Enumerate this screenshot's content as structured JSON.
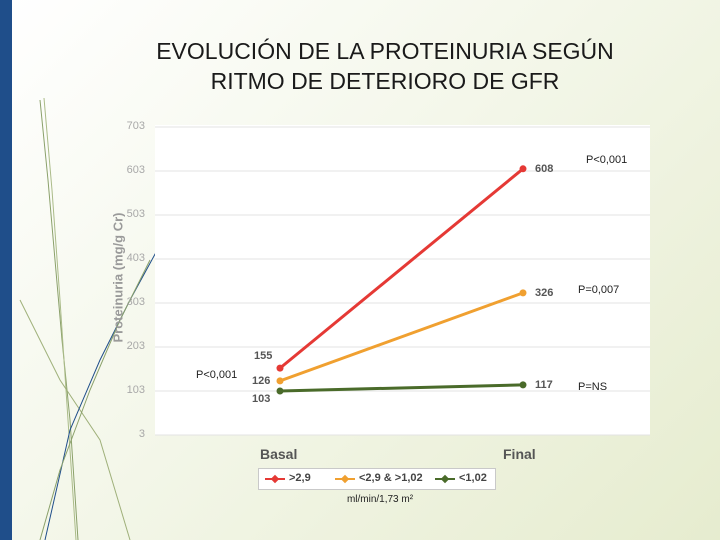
{
  "slide": {
    "title_line1": "EVOLUCIÓN DE LA PROTEINURIA SEGÚN",
    "title_line2": "RITMO DE DETERIORO DE GFR",
    "unit_note": "ml/min/1,73 m²"
  },
  "annotations": {
    "top_right": "P<0,001",
    "mid_right": "P=0,007",
    "bottom_right": "P=NS",
    "left": "P<0,001"
  },
  "chart_data": {
    "type": "line",
    "title": "",
    "xlabel": "",
    "ylabel": "Proteinuria (mg/g Cr)",
    "categories": [
      "Basal",
      "Final"
    ],
    "ylim": [
      3,
      703
    ],
    "yticks": [
      "703",
      "603",
      "503",
      "403",
      "303",
      "203",
      "103",
      "3"
    ],
    "ytick_values": [
      703,
      603,
      503,
      403,
      303,
      203,
      103,
      3
    ],
    "grid": true,
    "legend_position": "bottom",
    "series": [
      {
        "name": ">2,9",
        "values": [
          155,
          608
        ],
        "labels": [
          "155",
          "608"
        ],
        "color": "#e53935"
      },
      {
        "name": "<2,9 & >1,02",
        "values": [
          126,
          326
        ],
        "labels": [
          "126",
          "326"
        ],
        "color": "#f0a030"
      },
      {
        "name": "<1,02",
        "values": [
          103,
          117
        ],
        "labels": [
          "103",
          "117"
        ],
        "color": "#4a6b2a"
      }
    ]
  },
  "colors": {
    "accent_bar": "#1f4e8a"
  }
}
